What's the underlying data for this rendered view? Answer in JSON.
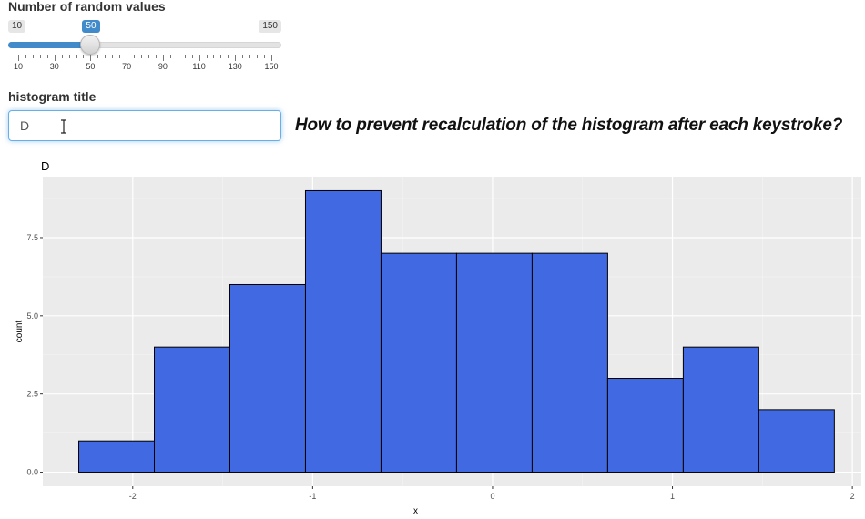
{
  "slider": {
    "label": "Number of random values",
    "min": 10,
    "max": 150,
    "value": 50,
    "min_label": "10",
    "max_label": "150",
    "value_label": "50",
    "tick_labels": [
      "10",
      "30",
      "50",
      "70",
      "90",
      "110",
      "130",
      "150"
    ]
  },
  "title_field": {
    "label": "histogram title",
    "value": "D"
  },
  "headline": "How to prevent recalculation of the histogram after each keystroke?",
  "colors": {
    "accent": "#428bca",
    "bar_fill": "#4169e1",
    "panel_bg": "#ebebeb"
  },
  "chart_data": {
    "type": "bar",
    "title": "D",
    "xlabel": "x",
    "ylabel": "count",
    "bin_edges": [
      -2.3,
      -1.88,
      -1.46,
      -1.04,
      -0.62,
      -0.2,
      0.22,
      0.64,
      1.06,
      1.48,
      1.9
    ],
    "values": [
      1,
      4,
      6,
      9,
      7,
      7,
      7,
      3,
      4,
      2
    ],
    "xlim": [
      -2.5,
      2.05
    ],
    "ylim": [
      -0.45,
      9.45
    ],
    "x_ticks": [
      -2,
      -1,
      0,
      1,
      2
    ],
    "x_tick_labels": [
      "-2",
      "-1",
      "0",
      "1",
      "2"
    ],
    "y_ticks": [
      0,
      2.5,
      5,
      7.5
    ],
    "y_tick_labels": [
      "0.0",
      "2.5",
      "5.0",
      "7.5"
    ],
    "grid": true
  }
}
